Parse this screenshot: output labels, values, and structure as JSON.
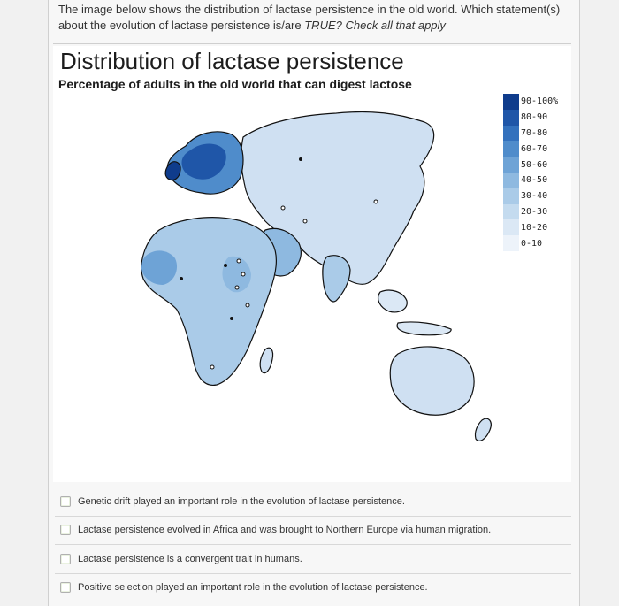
{
  "question": {
    "line1": "The image below shows the distribution of lactase persistence in the old world. Which statement(s)",
    "line2_prefix": "about the evolution of lactase persistence is/are ",
    "line2_true": "TRUE",
    "line2_suffix": "? Check all that apply"
  },
  "figure": {
    "title": "Distribution of lactase persistence",
    "subtitle": "Percentage of adults in the old world that can digest lactose"
  },
  "legend": {
    "items": [
      {
        "label": "90-100%",
        "color": "#0f3c8c"
      },
      {
        "label": "80-90",
        "color": "#1f56a8"
      },
      {
        "label": "70-80",
        "color": "#3371bd"
      },
      {
        "label": "60-70",
        "color": "#4f8ccb"
      },
      {
        "label": "50-60",
        "color": "#6ea3d6"
      },
      {
        "label": "40-50",
        "color": "#8eb9e0"
      },
      {
        "label": "30-40",
        "color": "#aacbe8"
      },
      {
        "label": "20-30",
        "color": "#c4dbef"
      },
      {
        "label": "10-20",
        "color": "#dbe8f5"
      },
      {
        "label": "0-10",
        "color": "#edf3fa"
      }
    ]
  },
  "options": [
    {
      "label": "Genetic drift played an important role in the evolution of lactase persistence."
    },
    {
      "label": "Lactase persistence evolved in Africa and was brought to Northern Europe via human migration."
    },
    {
      "label": "Lactase persistence is a convergent trait in humans."
    },
    {
      "label": "Positive selection played an important role in the evolution of lactase persistence."
    }
  ]
}
